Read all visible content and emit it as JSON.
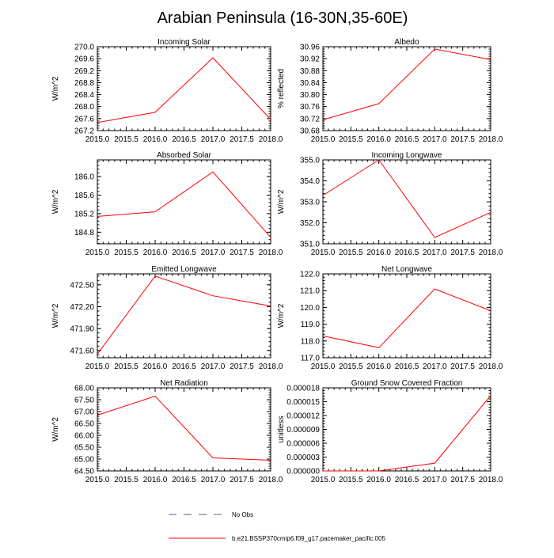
{
  "title": "Arabian Peninsula (16-30N,35-60E)",
  "colors": {
    "model_line": "#ff0000",
    "obs_line": "#6a4ca0",
    "axis": "#000000"
  },
  "legend": [
    {
      "label": "No Obs",
      "style": "dashed",
      "color": "#6a4ca0"
    },
    {
      "label": "b.e21.BSSP370cmip6.f09_g17.pacemaker_pacific.005",
      "style": "solid",
      "color": "#ff0000"
    }
  ],
  "chart_data": [
    {
      "type": "line",
      "title": "Incoming Solar",
      "xlabel": "",
      "ylabel": "W/m^2",
      "x": [
        2015,
        2016,
        2017,
        2018
      ],
      "series": [
        {
          "name": "b.e21.BSSP370cmip6.f09_g17.pacemaker_pacific.005",
          "values": [
            267.47,
            267.81,
            269.63,
            267.57
          ]
        }
      ],
      "xlim": [
        2015,
        2018
      ],
      "ylim": [
        267.2,
        270.0
      ],
      "xticks": [
        "2015.0",
        "2015.5",
        "2016.0",
        "2016.5",
        "2017.0",
        "2017.5",
        "2018.0"
      ],
      "yticks": [
        "267.2",
        "267.6",
        "268.0",
        "268.4",
        "268.8",
        "269.2",
        "269.6",
        "270.0"
      ],
      "ytick_values": [
        267.2,
        267.6,
        268.0,
        268.4,
        268.8,
        269.2,
        269.6,
        270.0
      ]
    },
    {
      "type": "line",
      "title": "Albedo",
      "xlabel": "",
      "ylabel": "% reflected",
      "x": [
        2015,
        2016,
        2017,
        2018
      ],
      "series": [
        {
          "name": "b.e21.BSSP370cmip6.f09_g17.pacemaker_pacific.005",
          "values": [
            30.716,
            30.77,
            30.952,
            30.917
          ]
        }
      ],
      "xlim": [
        2015,
        2018
      ],
      "ylim": [
        30.68,
        30.96
      ],
      "xticks": [
        "2015.0",
        "2015.5",
        "2016.0",
        "2016.5",
        "2017.0",
        "2017.5",
        "2018.0"
      ],
      "yticks": [
        "30.68",
        "30.72",
        "30.76",
        "30.80",
        "30.84",
        "30.88",
        "30.92",
        "30.96"
      ],
      "ytick_values": [
        30.68,
        30.72,
        30.76,
        30.8,
        30.84,
        30.88,
        30.92,
        30.96
      ]
    },
    {
      "type": "line",
      "title": "Absorbed Solar",
      "xlabel": "",
      "ylabel": "W/m^2",
      "x": [
        2015,
        2016,
        2017,
        2018
      ],
      "series": [
        {
          "name": "b.e21.BSSP370cmip6.f09_g17.pacemaker_pacific.005",
          "values": [
            185.14,
            185.24,
            186.1,
            184.69
          ]
        }
      ],
      "xlim": [
        2015,
        2018
      ],
      "ylim": [
        184.55,
        186.36
      ],
      "xticks": [
        "2015.0",
        "2015.5",
        "2016.0",
        "2016.5",
        "2017.0",
        "2017.5",
        "2018.0"
      ],
      "yticks": [
        "184.8",
        "185.2",
        "185.6",
        "186.0"
      ],
      "ytick_values": [
        184.8,
        185.2,
        185.6,
        186.0
      ]
    },
    {
      "type": "line",
      "title": "Incoming Longwave",
      "xlabel": "",
      "ylabel": "W/m^2",
      "x": [
        2015,
        2016,
        2017,
        2018
      ],
      "series": [
        {
          "name": "b.e21.BSSP370cmip6.f09_g17.pacemaker_pacific.005",
          "values": [
            353.3,
            355.0,
            351.3,
            352.5
          ]
        }
      ],
      "xlim": [
        2015,
        2018
      ],
      "ylim": [
        351.0,
        355.0
      ],
      "xticks": [
        "2015.0",
        "2015.5",
        "2016.0",
        "2016.5",
        "2017.0",
        "2017.5",
        "2018.0"
      ],
      "yticks": [
        "351.0",
        "352.0",
        "353.0",
        "354.0",
        "355.0"
      ],
      "ytick_values": [
        351.0,
        352.0,
        353.0,
        354.0,
        355.0
      ]
    },
    {
      "type": "line",
      "title": "Emitted Longwave",
      "xlabel": "",
      "ylabel": "W/m^2",
      "x": [
        2015,
        2016,
        2017,
        2018
      ],
      "series": [
        {
          "name": "b.e21.BSSP370cmip6.f09_g17.pacemaker_pacific.005",
          "values": [
            471.55,
            472.62,
            472.35,
            472.21
          ]
        }
      ],
      "xlim": [
        2015,
        2018
      ],
      "ylim": [
        471.5,
        472.65
      ],
      "xticks": [
        "2015.0",
        "2015.5",
        "2016.0",
        "2016.5",
        "2017.0",
        "2017.5",
        "2018.0"
      ],
      "yticks": [
        "471.60",
        "471.90",
        "472.20",
        "472.50"
      ],
      "ytick_values": [
        471.6,
        471.9,
        472.2,
        472.5
      ]
    },
    {
      "type": "line",
      "title": "Net Longwave",
      "xlabel": "",
      "ylabel": "W/m^2",
      "x": [
        2015,
        2016,
        2017,
        2018
      ],
      "series": [
        {
          "name": "b.e21.BSSP370cmip6.f09_g17.pacemaker_pacific.005",
          "values": [
            118.3,
            117.6,
            121.1,
            119.8
          ]
        }
      ],
      "xlim": [
        2015,
        2018
      ],
      "ylim": [
        117.0,
        122.0
      ],
      "xticks": [
        "2015.0",
        "2015.5",
        "2016.0",
        "2016.5",
        "2017.0",
        "2017.5",
        "2018.0"
      ],
      "yticks": [
        "117.0",
        "118.0",
        "119.0",
        "120.0",
        "121.0",
        "122.0"
      ],
      "ytick_values": [
        117.0,
        118.0,
        119.0,
        120.0,
        121.0,
        122.0
      ]
    },
    {
      "type": "line",
      "title": "Net Radiation",
      "xlabel": "",
      "ylabel": "W/m^2",
      "x": [
        2015,
        2016,
        2017,
        2018
      ],
      "series": [
        {
          "name": "b.e21.BSSP370cmip6.f09_g17.pacemaker_pacific.005",
          "values": [
            66.85,
            67.65,
            65.05,
            64.95
          ]
        }
      ],
      "xlim": [
        2015,
        2018
      ],
      "ylim": [
        64.5,
        68.0
      ],
      "xticks": [
        "2015.0",
        "2015.5",
        "2016.0",
        "2016.5",
        "2017.0",
        "2017.5",
        "2018.0"
      ],
      "yticks": [
        "64.50",
        "65.00",
        "65.50",
        "66.00",
        "66.50",
        "67.00",
        "67.50",
        "68.00"
      ],
      "ytick_values": [
        64.5,
        65.0,
        65.5,
        66.0,
        66.5,
        67.0,
        67.5,
        68.0
      ]
    },
    {
      "type": "line",
      "title": "Ground Snow Covered Fraction",
      "xlabel": "",
      "ylabel": "unitless",
      "x": [
        2015,
        2016,
        2017,
        2018
      ],
      "series": [
        {
          "name": "b.e21.BSSP370cmip6.f09_g17.pacemaker_pacific.005",
          "values": [
            0.0,
            0.0,
            1.7e-06,
            1.63e-05
          ]
        }
      ],
      "xlim": [
        2015,
        2018
      ],
      "ylim": [
        0.0,
        1.8e-05
      ],
      "xticks": [
        "2015.0",
        "2015.5",
        "2016.0",
        "2016.5",
        "2017.0",
        "2017.5",
        "2018.0"
      ],
      "yticks": [
        "0.000000",
        "0.000003",
        "0.000006",
        "0.000009",
        "0.000012",
        "0.000015",
        "0.000018"
      ],
      "ytick_values": [
        0.0,
        3e-06,
        6e-06,
        9e-06,
        1.2e-05,
        1.5e-05,
        1.8e-05
      ]
    }
  ]
}
